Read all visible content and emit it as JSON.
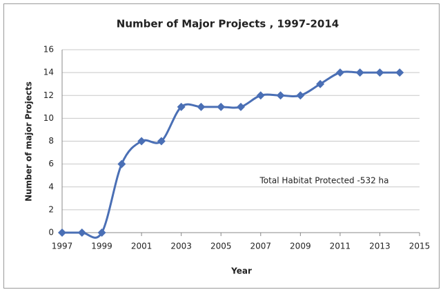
{
  "chart_data": {
    "type": "line",
    "title": "Number of Major Projects , 1997-2014",
    "x_label": "Year",
    "y_label": "Number of major Projects",
    "annotation": "Total Habitat Protected  -532 ha",
    "x": [
      1997,
      1998,
      1999,
      2000,
      2001,
      2002,
      2003,
      2004,
      2005,
      2006,
      2007,
      2008,
      2009,
      2010,
      2011,
      2012,
      2013,
      2014
    ],
    "series": [
      {
        "name": "Number of major Projects",
        "color": "#4a6fb5",
        "values": [
          0,
          0,
          0,
          6,
          8,
          8,
          11,
          11,
          11,
          11,
          12,
          12,
          12,
          13,
          14,
          14,
          14,
          14
        ]
      }
    ],
    "xlim": [
      1997,
      2015
    ],
    "xticks": [
      1997,
      1999,
      2001,
      2003,
      2005,
      2007,
      2009,
      2011,
      2013,
      2015
    ],
    "ylim": [
      0,
      16
    ],
    "yticks": [
      0,
      2,
      4,
      6,
      8,
      10,
      12,
      14,
      16
    ],
    "grid": true
  }
}
